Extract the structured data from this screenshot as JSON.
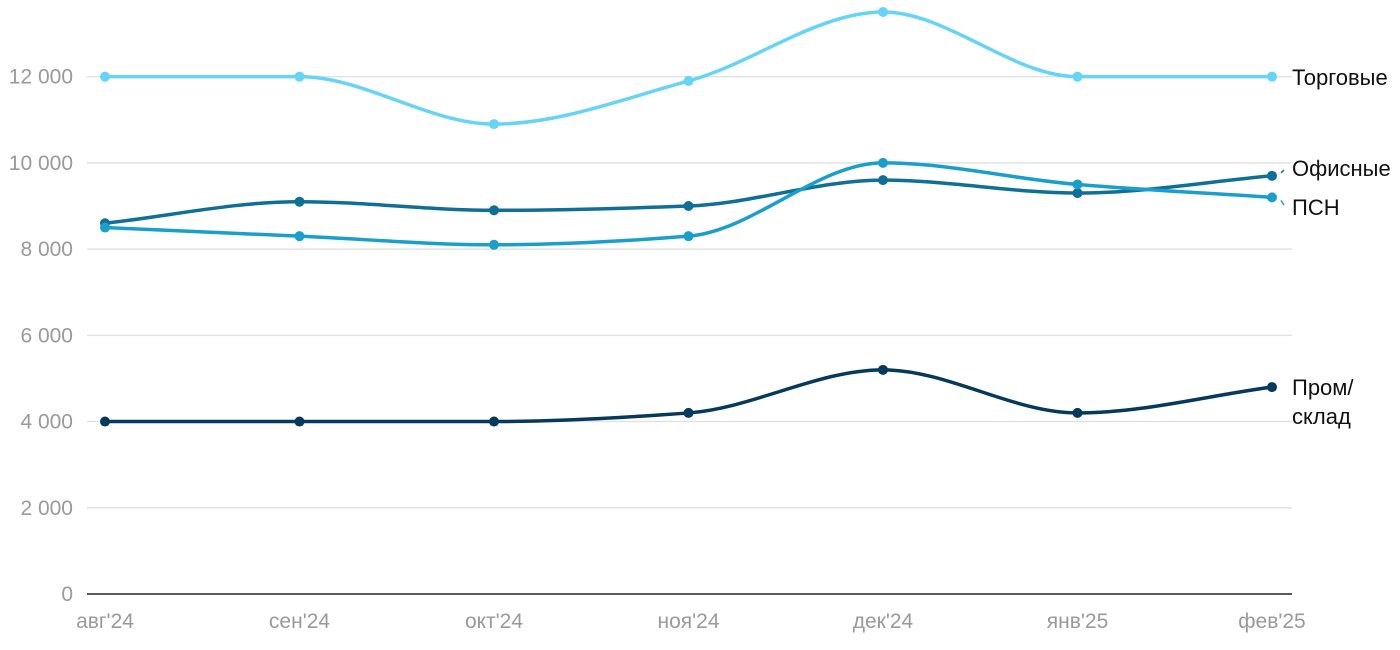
{
  "chart_data": {
    "type": "line",
    "title": "",
    "xlabel": "",
    "ylabel": "",
    "categories": [
      "авг'24",
      "сен'24",
      "окт'24",
      "ноя'24",
      "дек'24",
      "янв'25",
      "фев'25"
    ],
    "ylim": [
      0,
      13500
    ],
    "yticks": [
      0,
      2000,
      4000,
      6000,
      8000,
      10000,
      12000
    ],
    "ytick_labels": [
      "0",
      "2 000",
      "4 000",
      "6 000",
      "8 000",
      "10 000",
      "12 000"
    ],
    "grid": true,
    "legend": "end-labels-right",
    "series": [
      {
        "name": "Торговые",
        "label_lines": [
          "Торговые"
        ],
        "color": "#66d4f7",
        "values": [
          12000,
          12000,
          10900,
          11900,
          13500,
          12000,
          12000
        ]
      },
      {
        "name": "Офисные",
        "label_lines": [
          "Офисные"
        ],
        "color": "#0f6f96",
        "values": [
          8600,
          9100,
          8900,
          9000,
          9600,
          9300,
          9700
        ]
      },
      {
        "name": "ПСН",
        "label_lines": [
          "ПСН"
        ],
        "color": "#1a9fcd",
        "values": [
          8500,
          8300,
          8100,
          8300,
          10000,
          9500,
          9200
        ]
      },
      {
        "name": "Пром/склад",
        "label_lines": [
          "Пром/",
          "склад"
        ],
        "color": "#053a5c",
        "values": [
          4000,
          4000,
          4000,
          4200,
          5200,
          4200,
          4800
        ]
      }
    ]
  }
}
